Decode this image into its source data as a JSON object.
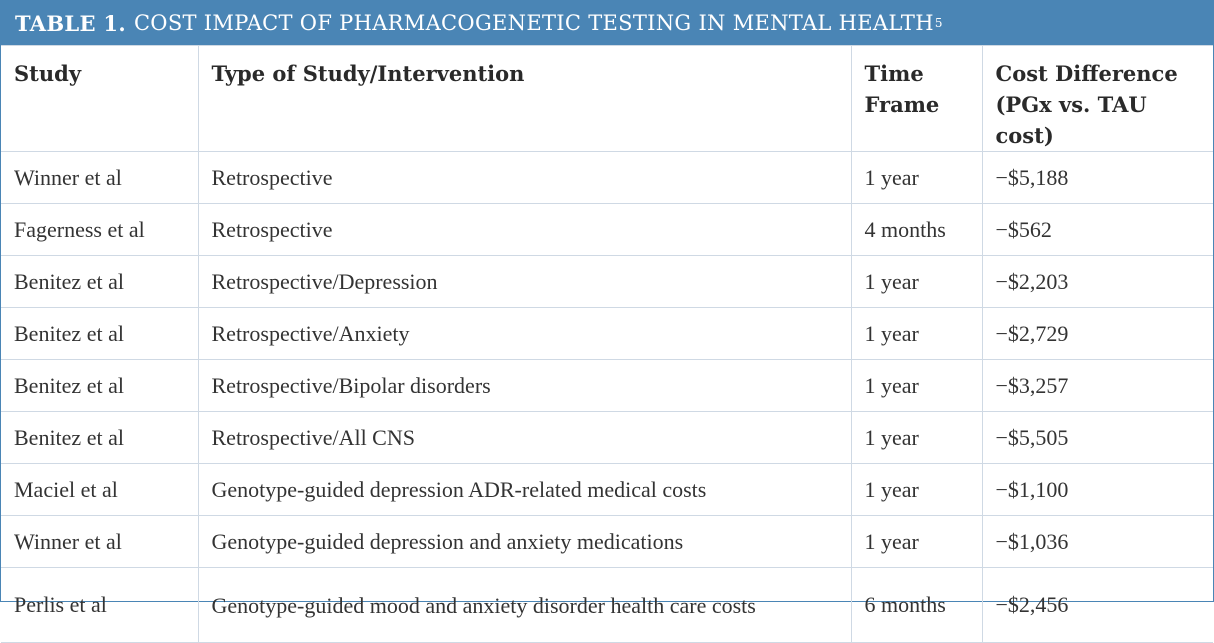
{
  "title": {
    "label": "TABLE 1.",
    "text": "COST IMPACT OF PHARMACOGENETIC TESTING IN MENTAL HEALTH",
    "footnote": "5"
  },
  "columns": [
    "Study",
    "Type of Study/Intervention",
    "Time Frame",
    "Cost Difference (PGx vs. TAU cost)"
  ],
  "rows": [
    {
      "study": "Winner et al",
      "type": "Retrospective",
      "time": "1 year",
      "cost": "−$5,188"
    },
    {
      "study": "Fagerness et al",
      "type": "Retrospective",
      "time": "4 months",
      "cost": "−$562"
    },
    {
      "study": "Benitez et al",
      "type": "Retrospective/Depression",
      "time": "1 year",
      "cost": "−$2,203"
    },
    {
      "study": "Benitez et al",
      "type": "Retrospective/Anxiety",
      "time": "1 year",
      "cost": "−$2,729"
    },
    {
      "study": "Benitez et al",
      "type": "Retrospective/Bipolar disorders",
      "time": "1 year",
      "cost": "−$3,257"
    },
    {
      "study": "Benitez et al",
      "type": "Retrospective/All CNS",
      "time": "1 year",
      "cost": "−$5,505"
    },
    {
      "study": "Maciel et al",
      "type": "Genotype-guided depression ADR-related medical costs",
      "time": "1 year",
      "cost": "−$1,100"
    },
    {
      "study": "Winner et al",
      "type": "Genotype-guided depression and anxiety medications",
      "time": "1 year",
      "cost": "−$1,036"
    },
    {
      "study": "Perlis et al",
      "type": "Genotype-guided mood and anxiety disorder health care costs",
      "time": "6 months",
      "cost": "−$2,456"
    }
  ],
  "colors": {
    "header_bar": "#4a85b5",
    "grid": "#cfd9e4",
    "text": "#333333"
  }
}
